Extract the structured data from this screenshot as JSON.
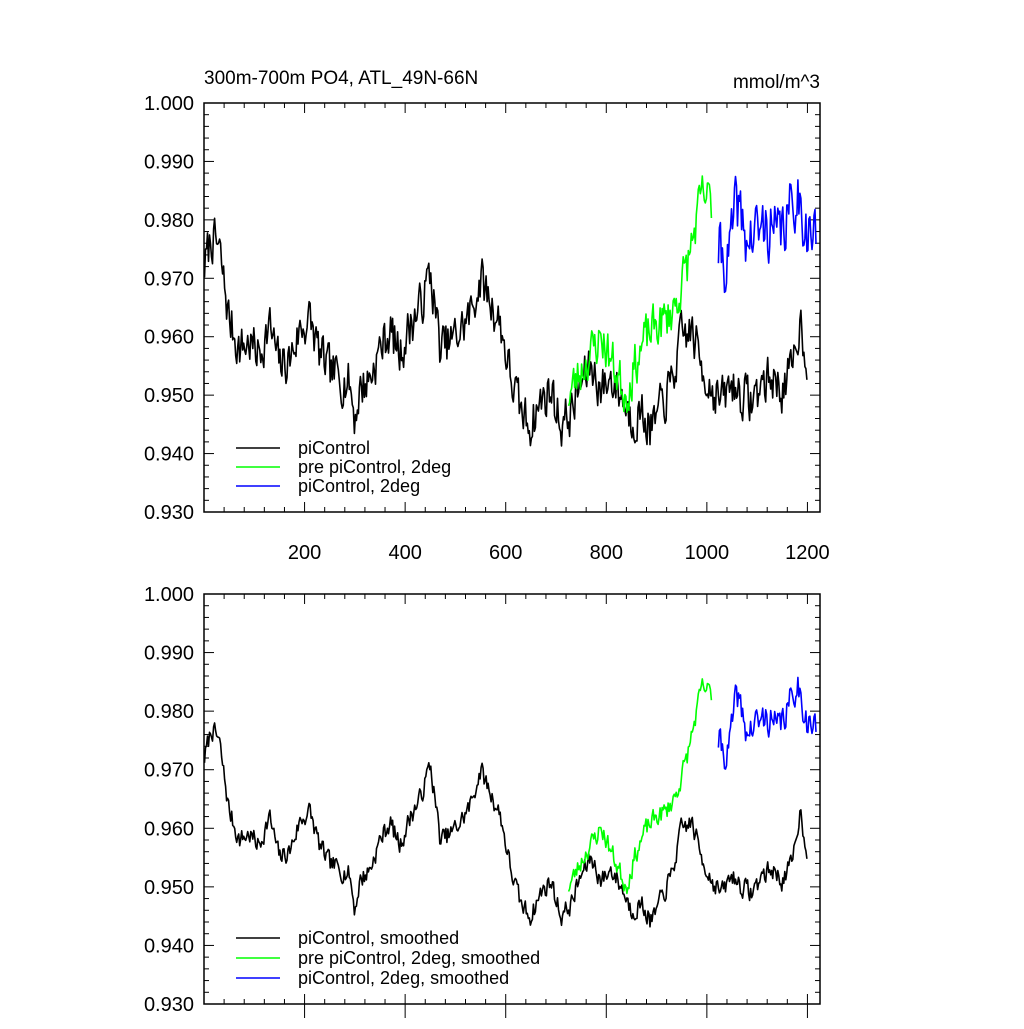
{
  "chart_data": [
    {
      "type": "line",
      "title": "300m-700m PO4, ATL_49N-66N",
      "units": "mmol/m^3",
      "xlim": [
        0,
        1225
      ],
      "ylim": [
        0.93,
        1.0
      ],
      "x_ticks": [
        200,
        400,
        600,
        800,
        1000,
        1200
      ],
      "x_tick_labels": [
        "200",
        "400",
        "600",
        "800",
        "1000",
        "1200"
      ],
      "y_ticks": [
        0.93,
        0.94,
        0.95,
        0.96,
        0.97,
        0.98,
        0.99,
        1.0
      ],
      "y_tick_labels": [
        "0.930",
        "0.940",
        "0.950",
        "0.960",
        "0.970",
        "0.980",
        "0.990",
        "1.000"
      ],
      "legend": "bottom-left",
      "grid": false,
      "series": [
        {
          "name": "piControl",
          "color": "#000000",
          "x": [
            1,
            15,
            30,
            50,
            70,
            90,
            110,
            130,
            150,
            170,
            190,
            210,
            230,
            250,
            270,
            290,
            300,
            310,
            330,
            350,
            370,
            390,
            410,
            430,
            450,
            470,
            490,
            510,
            530,
            550,
            570,
            590,
            610,
            630,
            650,
            670,
            690,
            710,
            730,
            750,
            770,
            790,
            810,
            830,
            850,
            870,
            890,
            910,
            930,
            950,
            970,
            990,
            1010,
            1030,
            1050,
            1070,
            1090,
            1110,
            1130,
            1150,
            1170,
            1185,
            1200
          ],
          "y": [
            0.972,
            0.977,
            0.975,
            0.963,
            0.958,
            0.959,
            0.957,
            0.962,
            0.955,
            0.956,
            0.961,
            0.963,
            0.957,
            0.954,
            0.953,
            0.952,
            0.946,
            0.951,
            0.953,
            0.958,
            0.961,
            0.957,
            0.962,
            0.965,
            0.971,
            0.958,
            0.959,
            0.961,
            0.964,
            0.97,
            0.966,
            0.962,
            0.953,
            0.947,
            0.945,
            0.949,
            0.951,
            0.945,
            0.947,
            0.952,
            0.955,
            0.951,
            0.953,
            0.95,
            0.946,
            0.947,
            0.944,
            0.948,
            0.952,
            0.96,
            0.961,
            0.955,
            0.951,
            0.949,
            0.952,
            0.95,
            0.949,
            0.952,
            0.953,
            0.951,
            0.954,
            0.963,
            0.956
          ],
          "noise": 0.0055,
          "seed": 7
        },
        {
          "name": "pre piControl, 2deg",
          "color": "#00ff00",
          "x": [
            725,
            760,
            790,
            820,
            840,
            860,
            880,
            900,
            920,
            940,
            960,
            975,
            990,
            1010
          ],
          "y": [
            0.95,
            0.956,
            0.96,
            0.954,
            0.95,
            0.956,
            0.96,
            0.962,
            0.963,
            0.966,
            0.972,
            0.978,
            0.984,
            0.983
          ],
          "noise": 0.0055,
          "seed": 23
        },
        {
          "name": "piControl, 2deg",
          "color": "#0000ff",
          "x": [
            1023,
            1040,
            1060,
            1080,
            1100,
            1120,
            1140,
            1160,
            1180,
            1200,
            1218
          ],
          "y": [
            0.975,
            0.972,
            0.983,
            0.976,
            0.978,
            0.979,
            0.977,
            0.98,
            0.985,
            0.978,
            0.977
          ],
          "noise": 0.0075,
          "seed": 41
        }
      ]
    },
    {
      "type": "line",
      "xlim": [
        0,
        1225
      ],
      "ylim": [
        0.93,
        1.0
      ],
      "x_ticks": [
        200,
        400,
        600,
        800,
        1000,
        1200
      ],
      "y_ticks": [
        0.93,
        0.94,
        0.95,
        0.96,
        0.97,
        0.98,
        0.99,
        1.0
      ],
      "y_tick_labels": [
        "0.930",
        "0.940",
        "0.950",
        "0.960",
        "0.970",
        "0.980",
        "0.990",
        "1.000"
      ],
      "legend": "bottom-left",
      "grid": false,
      "series": [
        {
          "name": "piControl, smoothed",
          "color": "#000000",
          "x": [
            1,
            15,
            30,
            50,
            70,
            90,
            110,
            130,
            150,
            170,
            190,
            210,
            230,
            250,
            270,
            290,
            300,
            310,
            330,
            350,
            370,
            390,
            410,
            430,
            450,
            470,
            490,
            510,
            530,
            550,
            570,
            590,
            610,
            630,
            650,
            670,
            690,
            710,
            730,
            750,
            770,
            790,
            810,
            830,
            850,
            870,
            890,
            910,
            930,
            950,
            970,
            990,
            1010,
            1030,
            1050,
            1070,
            1090,
            1110,
            1130,
            1150,
            1170,
            1185,
            1200
          ],
          "y": [
            0.972,
            0.977,
            0.975,
            0.963,
            0.958,
            0.959,
            0.957,
            0.962,
            0.955,
            0.956,
            0.961,
            0.963,
            0.957,
            0.954,
            0.953,
            0.952,
            0.946,
            0.951,
            0.953,
            0.958,
            0.961,
            0.957,
            0.962,
            0.965,
            0.971,
            0.958,
            0.959,
            0.961,
            0.964,
            0.97,
            0.966,
            0.962,
            0.953,
            0.947,
            0.945,
            0.949,
            0.951,
            0.945,
            0.947,
            0.952,
            0.955,
            0.951,
            0.953,
            0.95,
            0.946,
            0.947,
            0.944,
            0.948,
            0.952,
            0.96,
            0.961,
            0.955,
            0.951,
            0.949,
            0.952,
            0.95,
            0.949,
            0.952,
            0.953,
            0.951,
            0.954,
            0.963,
            0.956
          ],
          "noise": 0.0024,
          "seed": 7
        },
        {
          "name": "pre piControl, 2deg, smoothed",
          "color": "#00ff00",
          "x": [
            725,
            760,
            790,
            820,
            840,
            860,
            880,
            900,
            920,
            940,
            960,
            975,
            990,
            1010
          ],
          "y": [
            0.95,
            0.956,
            0.96,
            0.954,
            0.95,
            0.956,
            0.96,
            0.962,
            0.963,
            0.966,
            0.972,
            0.978,
            0.984,
            0.983
          ],
          "noise": 0.0024,
          "seed": 23
        },
        {
          "name": "piControl, 2deg, smoothed",
          "color": "#0000ff",
          "x": [
            1023,
            1040,
            1060,
            1080,
            1100,
            1120,
            1140,
            1160,
            1180,
            1200,
            1218
          ],
          "y": [
            0.975,
            0.972,
            0.983,
            0.976,
            0.978,
            0.979,
            0.977,
            0.98,
            0.985,
            0.978,
            0.977
          ],
          "noise": 0.0038,
          "seed": 41
        }
      ]
    }
  ]
}
